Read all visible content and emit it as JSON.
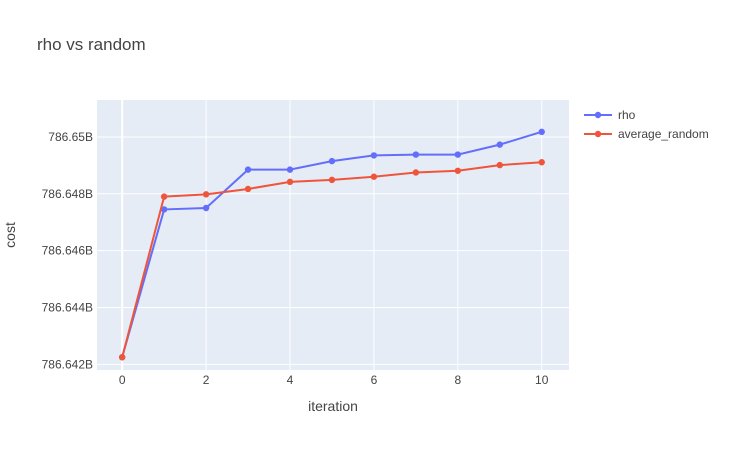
{
  "chart_data": {
    "type": "line",
    "title": "rho vs random",
    "xlabel": "iteration",
    "ylabel": "cost",
    "x": [
      0,
      1,
      2,
      3,
      4,
      5,
      6,
      7,
      8,
      9,
      10
    ],
    "xticks": [
      0,
      2,
      4,
      6,
      8,
      10
    ],
    "xtick_labels": [
      "0",
      "2",
      "4",
      "6",
      "8",
      "10"
    ],
    "yticks": [
      786.642,
      786.644,
      786.646,
      786.648,
      786.65
    ],
    "ytick_labels": [
      "786.642B",
      "786.644B",
      "786.646B",
      "786.648B",
      "786.65B"
    ],
    "xlim": [
      -0.6,
      10.65
    ],
    "ylim": [
      786.6418,
      786.6513
    ],
    "grid": true,
    "legend_position": "top-right",
    "series": [
      {
        "name": "rho",
        "color": "#636efa",
        "values": [
          786.64225,
          786.64745,
          786.6475,
          786.64885,
          786.64885,
          786.64915,
          786.64935,
          786.64938,
          786.64938,
          786.64973,
          786.65018
        ]
      },
      {
        "name": "average_random",
        "color": "#ef553b",
        "values": [
          786.64225,
          786.6479,
          786.64798,
          786.64817,
          786.64842,
          786.64849,
          786.6486,
          786.64875,
          786.64881,
          786.64901,
          786.64911
        ]
      }
    ]
  }
}
